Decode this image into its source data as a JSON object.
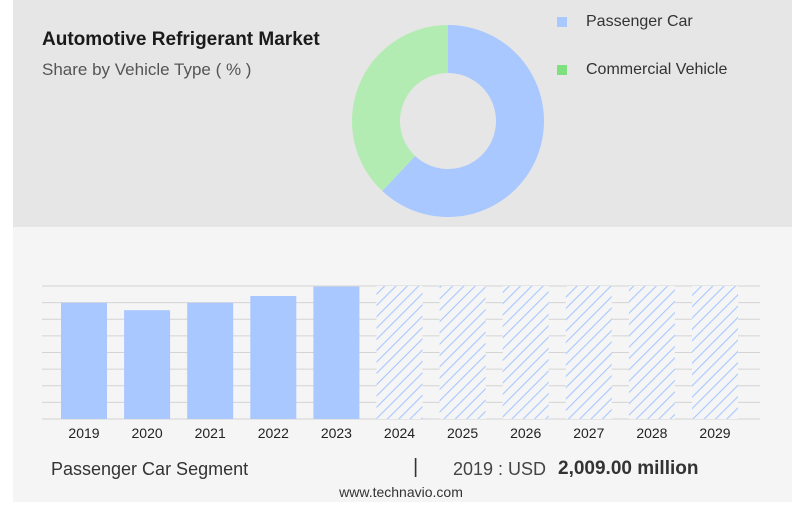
{
  "header": {
    "title": "Automotive Refrigerant Market",
    "subtitle": "Share by Vehicle Type ( % )"
  },
  "legend": [
    {
      "label": "Passenger Car",
      "color": "#a8c8ff"
    },
    {
      "label": "Commercial Vehicle",
      "color": "#b2ecb2"
    }
  ],
  "footer": {
    "segment_label": "Passenger Car Segment",
    "separator": "|",
    "year_label": "2019 : USD",
    "value_label": "2,009.00 million",
    "source": "www.technavio.com"
  },
  "chart_data": [
    {
      "type": "pie",
      "donut": true,
      "categories": [
        "Passenger Car",
        "Commercial Vehicle"
      ],
      "values": [
        62,
        38
      ],
      "colors": [
        "#a8c8ff",
        "#b2ecb2"
      ]
    },
    {
      "type": "bar",
      "categories": [
        "2019",
        "2020",
        "2021",
        "2022",
        "2023",
        "2024",
        "2025",
        "2026",
        "2027",
        "2028",
        "2029"
      ],
      "values": [
        2009,
        1882,
        2009,
        2127,
        2290,
        null,
        null,
        null,
        null,
        null,
        null
      ],
      "forecast_categories": [
        "2024",
        "2025",
        "2026",
        "2027",
        "2028",
        "2029"
      ],
      "ylim": [
        0,
        2300
      ],
      "grid": true,
      "colors": {
        "actual": "#a8c8ff",
        "forecast_hatch": "#a8c8ff"
      }
    }
  ]
}
